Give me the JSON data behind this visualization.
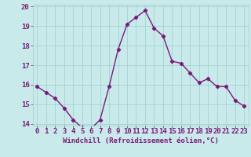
{
  "x": [
    0,
    1,
    2,
    3,
    4,
    5,
    6,
    7,
    8,
    9,
    10,
    11,
    12,
    13,
    14,
    15,
    16,
    17,
    18,
    19,
    20,
    21,
    22,
    23
  ],
  "y": [
    15.9,
    15.6,
    15.3,
    14.8,
    14.2,
    13.8,
    13.75,
    14.2,
    15.9,
    17.8,
    19.1,
    19.45,
    19.8,
    18.9,
    18.5,
    17.2,
    17.1,
    16.6,
    16.1,
    16.3,
    15.9,
    15.9,
    15.2,
    14.9
  ],
  "line_color": "#7b1a7b",
  "marker": "D",
  "marker_size": 2.2,
  "bg_color": "#c8eaea",
  "grid_color": "#9ecece",
  "xlabel": "Windchill (Refroidissement éolien,°C)",
  "ylim": [
    13.9,
    20.1
  ],
  "xlim": [
    -0.5,
    23.5
  ],
  "yticks": [
    14,
    15,
    16,
    17,
    18,
    19,
    20
  ],
  "xticks": [
    0,
    1,
    2,
    3,
    4,
    5,
    6,
    7,
    8,
    9,
    10,
    11,
    12,
    13,
    14,
    15,
    16,
    17,
    18,
    19,
    20,
    21,
    22,
    23
  ],
  "xlabel_fontsize": 6.5,
  "tick_fontsize": 6.5,
  "line_width": 1.0
}
